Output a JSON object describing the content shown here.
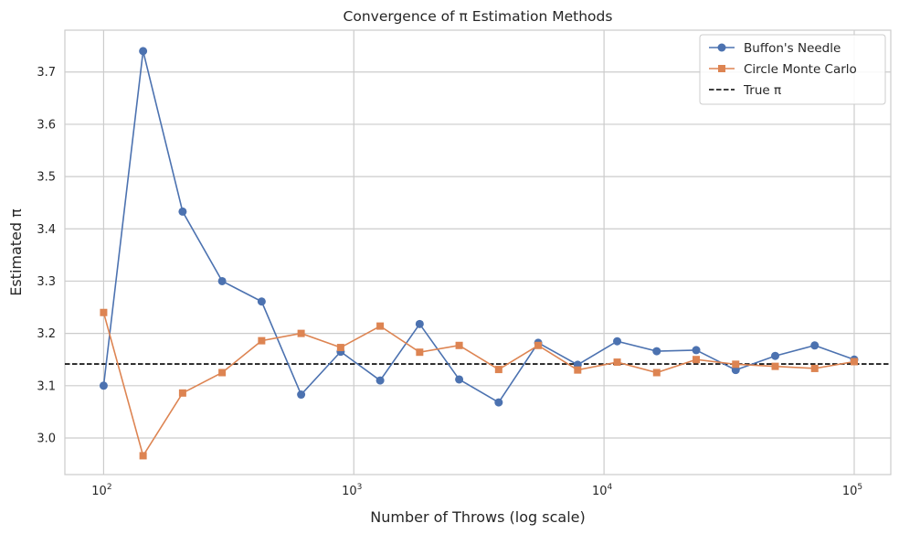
{
  "chart_data": {
    "type": "line",
    "title": "Convergence of π Estimation Methods",
    "xlabel": "Number of Throws (log scale)",
    "ylabel": "Estimated π",
    "x_scale": "log",
    "xlim": [
      70,
      140000
    ],
    "ylim": [
      2.93,
      3.78
    ],
    "x_ticks": [
      {
        "value": 100,
        "base": "10",
        "exp": "2"
      },
      {
        "value": 1000,
        "base": "10",
        "exp": "3"
      },
      {
        "value": 10000,
        "base": "10",
        "exp": "4"
      },
      {
        "value": 100000,
        "base": "10",
        "exp": "5"
      }
    ],
    "y_ticks": [
      "3.0",
      "3.1",
      "3.2",
      "3.3",
      "3.4",
      "3.5",
      "3.6",
      "3.7"
    ],
    "grid": true,
    "legend_position": "top-right",
    "x": [
      100,
      143.8,
      206.9,
      297.6,
      428.1,
      615.8,
      885.9,
      1274.3,
      1833,
      2636.7,
      3792.7,
      5455.6,
      7847.6,
      11288.4,
      16237.8,
      23357.2,
      33598.2,
      48329.3,
      69519.3,
      100000
    ],
    "series": [
      {
        "name": "Buffon's Needle",
        "color": "#4c72b0",
        "marker": "circle",
        "values": [
          3.1,
          3.74,
          3.433,
          3.3,
          3.261,
          3.083,
          3.165,
          3.11,
          3.218,
          3.112,
          3.068,
          3.182,
          3.14,
          3.185,
          3.166,
          3.168,
          3.13,
          3.157,
          3.177,
          3.15
        ]
      },
      {
        "name": "Circle Monte Carlo",
        "color": "#dd8452",
        "marker": "square",
        "values": [
          3.24,
          2.966,
          3.086,
          3.125,
          3.186,
          3.2,
          3.173,
          3.214,
          3.164,
          3.177,
          3.131,
          3.177,
          3.13,
          3.145,
          3.125,
          3.15,
          3.141,
          3.137,
          3.133,
          3.146
        ]
      }
    ],
    "reference_line": {
      "name": "True π",
      "value": 3.14159,
      "color": "#000000",
      "style": "dashed"
    }
  }
}
